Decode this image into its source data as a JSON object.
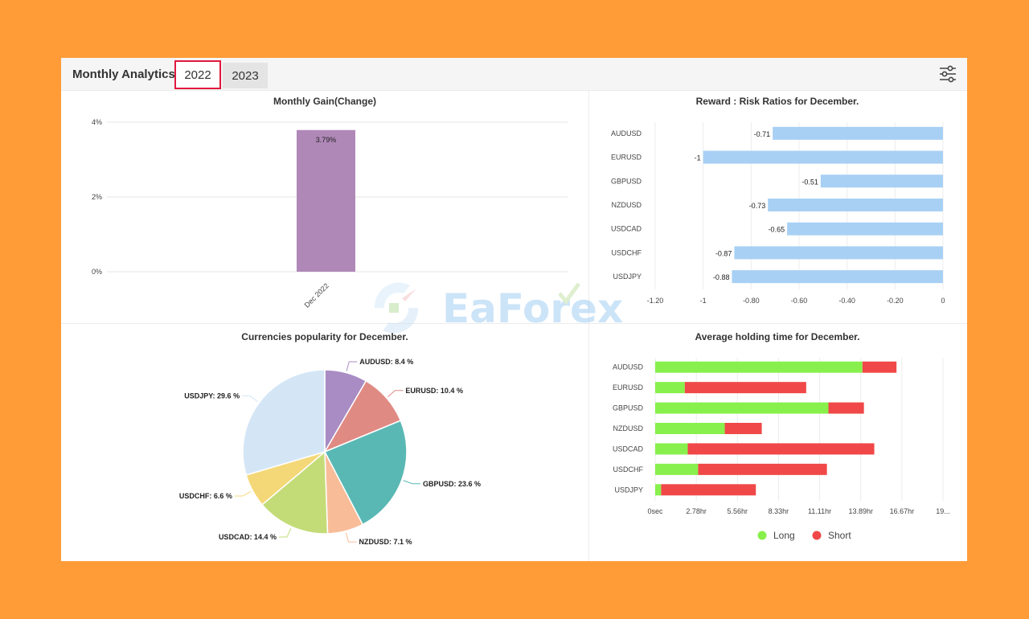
{
  "header": {
    "title": "Monthly Analytics",
    "tabs": [
      {
        "label": "2022",
        "active": true
      },
      {
        "label": "2023",
        "active": false
      }
    ],
    "settings_icon": "sliders-icon"
  },
  "watermark": {
    "text": "EaForex"
  },
  "colors": {
    "background": "#FF9C38",
    "gain_bar": "#B088B8",
    "ratio_bar": "#A8D0F4",
    "long": "#88F04C",
    "short": "#F04848",
    "active_tab_border": "#E0193E"
  },
  "chart_data": [
    {
      "type": "bar",
      "title": "Monthly Gain(Change)",
      "categories": [
        "Dec 2022"
      ],
      "values": [
        3.79
      ],
      "data_labels": [
        "3.79%"
      ],
      "y_ticks": [
        "0%",
        "2%",
        "4%"
      ],
      "ylim": [
        0,
        4
      ],
      "grid": true
    },
    {
      "type": "bar",
      "orientation": "horizontal",
      "title": "Reward : Risk Ratios for December.",
      "categories": [
        "AUDUSD",
        "EURUSD",
        "GBPUSD",
        "NZDUSD",
        "USDCAD",
        "USDCHF",
        "USDJPY"
      ],
      "values": [
        -0.71,
        -1,
        -0.51,
        -0.73,
        -0.65,
        -0.87,
        -0.88
      ],
      "data_labels": [
        "-0.71",
        "-1",
        "-0.51",
        "-0.73",
        "-0.65",
        "-0.87",
        "-0.88"
      ],
      "x_ticks": [
        "-1.20",
        "-1",
        "-0.80",
        "-0.60",
        "-0.40",
        "-0.20",
        "0"
      ],
      "xlim": [
        -1.2,
        0
      ],
      "grid": true
    },
    {
      "type": "pie",
      "title": "Currencies popularity for December.",
      "slices": [
        {
          "label": "AUDUSD: 8.4 %",
          "value": 8.4,
          "color": "#A98CC4"
        },
        {
          "label": "EURUSD: 10.4 %",
          "value": 10.4,
          "color": "#E08A84"
        },
        {
          "label": "GBPUSD: 23.6 %",
          "value": 23.6,
          "color": "#5AB8B4"
        },
        {
          "label": "NZDUSD: 7.1 %",
          "value": 7.1,
          "color": "#F8BC98"
        },
        {
          "label": "USDCAD: 14.4 %",
          "value": 14.4,
          "color": "#C4DC78"
        },
        {
          "label": "USDCHF: 6.6 %",
          "value": 6.6,
          "color": "#F4D878"
        },
        {
          "label": "USDJPY: 29.6 %",
          "value": 29.6,
          "color": "#D4E6F6"
        }
      ]
    },
    {
      "type": "bar",
      "orientation": "horizontal",
      "stacked": true,
      "title": "Average holding time for December.",
      "categories": [
        "AUDUSD",
        "EURUSD",
        "GBPUSD",
        "NZDUSD",
        "USDCAD",
        "USDCHF",
        "USDJPY"
      ],
      "x_ticks": [
        "0sec",
        "2.78hr",
        "5.56hr",
        "8.33hr",
        "11.11hr",
        "13.89hr",
        "16.67hr",
        "19..."
      ],
      "xlim": [
        0,
        19.44
      ],
      "x_unit": "hr",
      "series": [
        {
          "name": "Long",
          "color": "#88F04C",
          "values": [
            14.0,
            2.0,
            11.7,
            4.7,
            2.2,
            2.9,
            0.4
          ]
        },
        {
          "name": "Short",
          "color": "#F04848",
          "values": [
            2.3,
            8.2,
            2.4,
            2.5,
            12.6,
            8.7,
            6.4
          ]
        }
      ],
      "legend": [
        "Long",
        "Short"
      ],
      "legend_position": "bottom",
      "grid": true
    }
  ]
}
